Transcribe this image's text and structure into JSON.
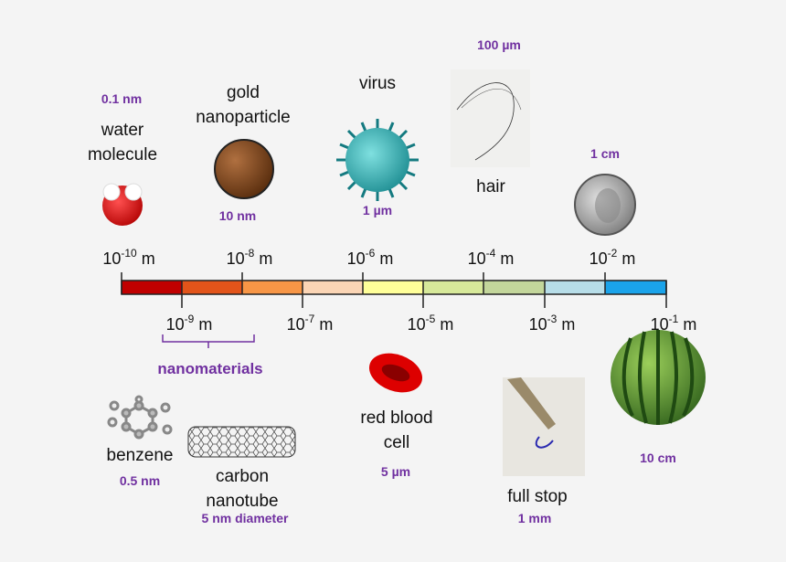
{
  "scale": {
    "top_labels": [
      {
        "base": "10",
        "exponent": "-10",
        "unit": "m"
      },
      {
        "base": "10",
        "exponent": "-8",
        "unit": "m"
      },
      {
        "base": "10",
        "exponent": "-6",
        "unit": "m"
      },
      {
        "base": "10",
        "exponent": "-4",
        "unit": "m"
      },
      {
        "base": "10",
        "exponent": "-2",
        "unit": "m"
      }
    ],
    "bottom_labels": [
      {
        "base": "10",
        "exponent": "-9",
        "unit": "m"
      },
      {
        "base": "10",
        "exponent": "-7",
        "unit": "m"
      },
      {
        "base": "10",
        "exponent": "-5",
        "unit": "m"
      },
      {
        "base": "10",
        "exponent": "-3",
        "unit": "m"
      },
      {
        "base": "10",
        "exponent": "-1",
        "unit": "m"
      }
    ]
  },
  "bracket_label": "nanomaterials",
  "items": [
    {
      "label": [
        "water",
        "molecule"
      ],
      "size": "0.1 nm"
    },
    {
      "label": [
        "gold",
        "nanoparticle"
      ],
      "size": "10 nm"
    },
    {
      "label": [
        "virus"
      ],
      "size": "1 µm"
    },
    {
      "label": [
        "hair"
      ],
      "size": "100 µm"
    },
    {
      "label": [],
      "size": "1 cm"
    },
    {
      "label": [
        "benzene"
      ],
      "size": "0.5 nm"
    },
    {
      "label": [
        "carbon",
        "nanotube"
      ],
      "size": "5 nm diameter"
    },
    {
      "label": [
        "red blood",
        "cell"
      ],
      "size": "5 µm"
    },
    {
      "label": [
        "full stop"
      ],
      "size": "1 mm"
    },
    {
      "label": [],
      "size": "10 cm"
    }
  ]
}
